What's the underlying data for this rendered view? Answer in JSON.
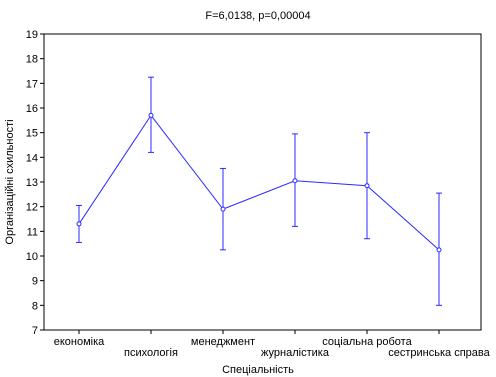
{
  "chart_data": {
    "type": "line",
    "title": "",
    "subtitle": "F=6,0138, p=0,00004",
    "xlabel": "Спеціальність",
    "ylabel": "Організаційні схильності",
    "ylim": [
      7,
      19
    ],
    "yticks": [
      7,
      8,
      9,
      10,
      11,
      12,
      13,
      14,
      15,
      16,
      17,
      18,
      19
    ],
    "grid": false,
    "colors": {
      "series": "#2b2bff",
      "axis": "#000000"
    },
    "categories": [
      "економіка",
      "психологія",
      "менеджмент",
      "журналістика",
      "соціальна робота",
      "сестринська справа"
    ],
    "series": [
      {
        "values": [
          11.3,
          15.7,
          11.9,
          13.05,
          12.85,
          10.25
        ],
        "error_low": [
          10.55,
          14.2,
          10.25,
          11.2,
          10.7,
          8.0
        ],
        "error_high": [
          12.05,
          17.25,
          13.55,
          14.95,
          15.0,
          12.55
        ]
      }
    ]
  }
}
